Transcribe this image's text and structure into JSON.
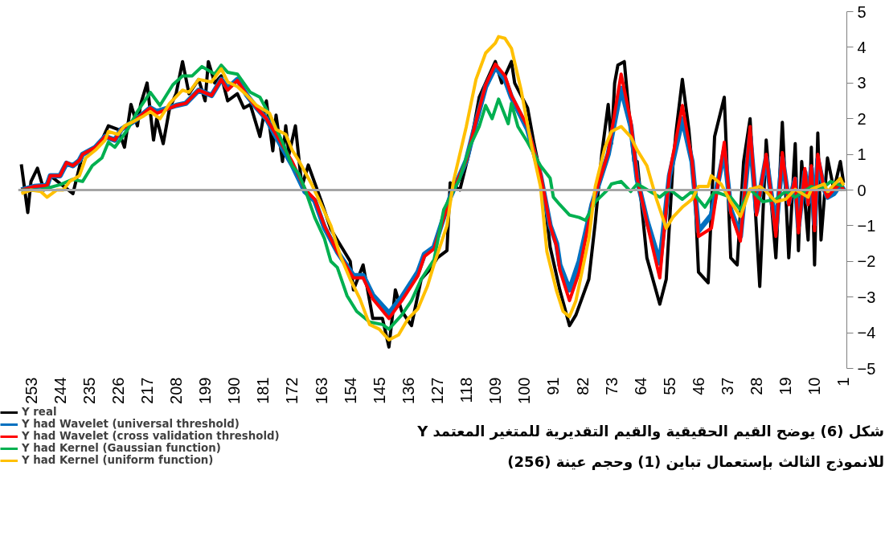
{
  "chart_data": {
    "type": "line",
    "title": "شكل (6) يوضح القيم الحقيقية والقيم التقديرية للمتغير المعتمد Y",
    "subtitle": "للانموذج الثالث بإستعمال تباين (1) وحجم عينة (256)",
    "xlim": [
      257,
      0
    ],
    "xticks": [
      253,
      244,
      235,
      226,
      217,
      208,
      199,
      190,
      181,
      172,
      163,
      154,
      145,
      136,
      127,
      118,
      109,
      100,
      91,
      82,
      73,
      64,
      55,
      46,
      37,
      28,
      19,
      10,
      1
    ],
    "ylim": [
      -5,
      5
    ],
    "yticks": [
      -5,
      -4,
      -3,
      -2,
      -1,
      0,
      1,
      2,
      3,
      4,
      5
    ],
    "grid": false,
    "legend": "bottom left",
    "ref_lines": [
      {
        "axis": "y",
        "value": 0,
        "color": "#a6a6a6"
      }
    ],
    "series": [
      {
        "name": "Y real",
        "color": "#000000",
        "x": [
          256,
          254,
          253,
          251,
          249,
          247,
          240,
          237,
          234,
          231,
          229,
          226,
          224,
          222,
          220,
          219,
          217,
          215,
          214,
          212,
          210,
          208,
          206,
          204,
          201,
          199,
          198,
          196,
          194,
          192,
          189,
          187,
          185,
          182,
          180,
          178,
          177,
          175,
          174,
          173,
          171,
          169,
          167,
          163,
          160,
          158,
          154,
          153,
          150,
          147,
          144,
          142,
          140,
          138,
          135,
          132,
          129,
          127,
          124,
          123,
          120,
          117,
          114,
          111,
          109,
          107,
          104,
          103,
          99,
          97,
          94,
          92,
          89,
          86,
          84,
          82,
          80,
          78,
          76,
          74,
          73,
          72,
          71,
          69,
          68,
          66,
          65,
          62,
          58,
          56,
          54,
          53,
          51,
          49,
          47,
          46,
          43,
          41,
          38,
          36,
          34,
          32,
          30,
          27,
          25,
          22,
          20,
          18,
          16,
          15,
          14,
          12,
          11,
          10,
          9,
          8,
          6,
          4,
          2,
          1
        ],
        "values": [
          0.72,
          -0.63,
          0.24,
          0.61,
          0.0,
          0.4,
          -0.1,
          1.0,
          1.1,
          1.4,
          1.8,
          1.7,
          1.2,
          2.4,
          1.8,
          2.4,
          3.0,
          1.4,
          2.0,
          1.3,
          2.3,
          2.7,
          3.6,
          2.7,
          3.1,
          2.5,
          3.6,
          3.0,
          3.2,
          2.5,
          2.7,
          2.3,
          2.4,
          1.5,
          2.5,
          1.1,
          2.1,
          0.8,
          1.8,
          1.0,
          1.8,
          0.1,
          0.7,
          -0.3,
          -1.1,
          -1.4,
          -2.0,
          -2.8,
          -2.1,
          -3.6,
          -3.6,
          -4.4,
          -2.8,
          -3.4,
          -3.8,
          -2.5,
          -2.2,
          -1.9,
          -1.7,
          0.2,
          0.0,
          1.1,
          2.6,
          3.2,
          3.6,
          3.0,
          3.6,
          3.0,
          2.3,
          1.3,
          0.0,
          -1.6,
          -2.8,
          -3.8,
          -3.5,
          -3.0,
          -2.5,
          -0.9,
          1.0,
          2.4,
          1.3,
          3.0,
          3.5,
          3.6,
          2.6,
          0.8,
          0.8,
          -1.9,
          -3.2,
          -2.5,
          0.6,
          1.6,
          3.1,
          1.7,
          -0.3,
          -2.3,
          -2.6,
          1.5,
          2.6,
          -1.9,
          -2.1,
          0.8,
          2.0,
          -2.7,
          1.4,
          -1.9,
          1.9,
          -1.9,
          1.3,
          -1.7,
          0.8,
          -1.4,
          1.2,
          -2.1,
          1.6,
          -1.4,
          0.9,
          0.0,
          0.8,
          0.2
        ]
      },
      {
        "name": "Y had Wavelet (universal threshold)",
        "color": "#0070c0",
        "x": [
          256,
          252,
          248,
          247,
          244,
          242,
          240,
          238,
          237,
          233,
          230,
          227,
          225,
          221,
          216,
          214,
          208,
          205,
          201,
          197,
          194,
          192,
          189,
          186,
          183,
          180,
          177,
          172,
          168,
          165,
          162,
          158,
          153,
          150,
          147,
          142,
          138,
          133,
          131,
          128,
          123,
          118,
          115,
          112,
          109,
          106,
          104,
          99,
          95,
          92,
          90,
          89,
          86,
          83,
          79,
          74,
          70,
          67,
          65,
          62,
          58,
          55,
          51,
          48,
          46,
          42,
          38,
          36,
          33,
          30,
          28,
          25,
          22,
          20,
          18,
          16,
          15,
          13,
          12,
          11,
          10,
          9,
          7,
          6,
          4,
          2,
          1
        ],
        "values": [
          0.0,
          0.1,
          0.13,
          0.4,
          0.4,
          0.75,
          0.68,
          0.83,
          1.0,
          1.2,
          1.5,
          1.4,
          1.7,
          1.93,
          2.3,
          2.2,
          2.37,
          2.43,
          2.8,
          2.65,
          3.1,
          2.85,
          3.1,
          2.65,
          2.3,
          2.0,
          1.5,
          0.7,
          -0.05,
          -0.3,
          -1.05,
          -1.73,
          -2.4,
          -2.4,
          -2.95,
          -3.45,
          -3.0,
          -2.3,
          -1.8,
          -1.6,
          -0.2,
          0.83,
          1.9,
          2.9,
          3.45,
          3.1,
          2.6,
          1.7,
          0.4,
          -1.0,
          -1.5,
          -2.1,
          -2.8,
          -2.0,
          -0.4,
          1.0,
          2.85,
          1.8,
          0.3,
          -0.85,
          -2.05,
          0.4,
          2.0,
          0.8,
          -1.15,
          -0.7,
          1.1,
          -0.55,
          -1.3,
          1.5,
          -0.6,
          0.9,
          -1.1,
          0.9,
          -0.35,
          0.3,
          -1.0,
          0.5,
          -0.35,
          0.6,
          -0.95,
          0.85,
          0.02,
          -0.2,
          -0.1,
          0.15,
          0.0
        ]
      },
      {
        "name": "Y had Wavelet (cross validation threshold)",
        "color": "#ff0000",
        "x": [
          256,
          252,
          248,
          247,
          244,
          242,
          240,
          238,
          237,
          233,
          230,
          227,
          225,
          221,
          216,
          214,
          208,
          205,
          201,
          197,
          194,
          192,
          189,
          186,
          183,
          180,
          177,
          172,
          168,
          165,
          162,
          158,
          153,
          150,
          147,
          142,
          138,
          133,
          131,
          128,
          123,
          118,
          115,
          112,
          109,
          106,
          104,
          99,
          95,
          92,
          90,
          89,
          86,
          83,
          79,
          74,
          70,
          67,
          65,
          62,
          58,
          55,
          51,
          48,
          46,
          42,
          38,
          36,
          33,
          30,
          28,
          25,
          22,
          20,
          18,
          16,
          15,
          13,
          12,
          11,
          10,
          9,
          7,
          6,
          4,
          2,
          1
        ],
        "values": [
          0.0,
          0.1,
          0.13,
          0.4,
          0.4,
          0.77,
          0.68,
          0.83,
          1.0,
          1.2,
          1.5,
          1.4,
          1.7,
          1.93,
          2.3,
          2.15,
          2.37,
          2.43,
          2.8,
          2.65,
          3.1,
          2.8,
          3.07,
          2.65,
          2.3,
          2.0,
          1.56,
          0.8,
          0.02,
          -0.26,
          -1.0,
          -1.73,
          -2.46,
          -2.46,
          -3.05,
          -3.6,
          -3.1,
          -2.4,
          -1.86,
          -1.65,
          -0.2,
          0.83,
          1.93,
          2.95,
          3.53,
          3.2,
          2.65,
          1.78,
          0.46,
          -1.0,
          -1.58,
          -2.24,
          -3.1,
          -2.3,
          -0.41,
          1.05,
          3.25,
          1.93,
          0.33,
          -0.92,
          -2.46,
          0.46,
          2.37,
          0.83,
          -1.3,
          -1.07,
          1.34,
          -0.63,
          -1.43,
          1.78,
          -0.7,
          1.0,
          -1.3,
          1.05,
          -0.41,
          0.33,
          -1.2,
          0.6,
          -0.41,
          0.68,
          -1.14,
          1.0,
          0.02,
          -0.2,
          0.02,
          0.17,
          0.0
        ]
      },
      {
        "name": "Y had Kernel (Gaussian function)",
        "color": "#00b050",
        "x": [
          256,
          250,
          244,
          240,
          237,
          234,
          231,
          229,
          227,
          223,
          220,
          216,
          213,
          209,
          206,
          203,
          200,
          196,
          194,
          192,
          189,
          185,
          182,
          178,
          175,
          172,
          170,
          168,
          165,
          162,
          160,
          158,
          155,
          152,
          148,
          144,
          142,
          138,
          135,
          132,
          128,
          125,
          120,
          117,
          114,
          112,
          110,
          108,
          105,
          104,
          102,
          99,
          95,
          92,
          91,
          89,
          86,
          83,
          81,
          78,
          74,
          73,
          70,
          67,
          65,
          61,
          58,
          55,
          51,
          48,
          44,
          41,
          36,
          33,
          30,
          26,
          22,
          19,
          16,
          11,
          8,
          5,
          2,
          1
        ],
        "values": [
          0.0,
          0.0,
          0.15,
          0.3,
          0.24,
          0.68,
          0.9,
          1.34,
          1.2,
          1.7,
          2.2,
          2.74,
          2.37,
          2.95,
          3.2,
          3.2,
          3.46,
          3.25,
          3.5,
          3.3,
          3.25,
          2.74,
          2.6,
          1.93,
          1.34,
          0.68,
          0.46,
          0.02,
          -0.77,
          -1.36,
          -2.0,
          -2.17,
          -2.96,
          -3.4,
          -3.7,
          -3.77,
          -3.9,
          -3.5,
          -3.1,
          -2.5,
          -1.95,
          -0.55,
          0.33,
          1.2,
          1.78,
          2.37,
          2.0,
          2.55,
          1.86,
          2.43,
          1.78,
          1.34,
          0.68,
          0.33,
          -0.2,
          -0.41,
          -0.7,
          -0.77,
          -0.85,
          -0.33,
          0.02,
          0.17,
          0.24,
          -0.04,
          0.17,
          -0.04,
          -0.2,
          0.02,
          -0.26,
          -0.04,
          -0.48,
          -0.04,
          -0.2,
          -0.55,
          0.02,
          -0.33,
          -0.26,
          -0.04,
          -0.2,
          0.1,
          0.02,
          0.24,
          0.13,
          0.13
        ]
      },
      {
        "name": "Y had Kernel (uniform function)",
        "color": "#ffc000",
        "x": [
          256,
          253,
          250,
          248,
          245,
          243,
          241,
          238,
          236,
          233,
          230,
          229,
          226,
          224,
          221,
          218,
          216,
          213,
          210,
          206,
          204,
          201,
          197,
          194,
          192,
          189,
          186,
          183,
          179,
          177,
          174,
          172,
          170,
          166,
          163,
          160,
          157,
          154,
          151,
          148,
          145,
          142,
          139,
          136,
          133,
          130,
          128,
          124,
          122,
          118,
          115,
          112,
          109,
          108,
          106,
          104,
          101,
          98,
          95,
          93,
          90,
          88,
          86,
          84,
          80,
          78,
          75,
          73,
          70,
          67,
          65,
          62,
          59,
          56,
          54,
          51,
          48,
          46,
          43,
          42,
          39,
          36,
          33,
          30,
          27,
          25,
          22,
          19,
          16,
          12,
          11,
          7,
          6,
          2,
          1
        ],
        "values": [
          -0.1,
          0.0,
          -0.04,
          -0.2,
          0.0,
          0.0,
          0.24,
          0.4,
          0.9,
          1.12,
          1.4,
          1.64,
          1.56,
          1.8,
          1.93,
          2.08,
          2.2,
          2.0,
          2.43,
          2.8,
          2.74,
          3.1,
          3.03,
          3.4,
          3.03,
          2.9,
          2.65,
          2.37,
          2.15,
          1.7,
          1.56,
          1.12,
          0.83,
          0.17,
          -0.41,
          -1.0,
          -1.86,
          -2.5,
          -3.05,
          -3.77,
          -3.9,
          -4.2,
          -4.06,
          -3.6,
          -3.33,
          -2.68,
          -2.08,
          -1.0,
          0.24,
          1.78,
          3.1,
          3.84,
          4.12,
          4.3,
          4.25,
          3.97,
          2.8,
          1.34,
          0.1,
          -1.73,
          -2.83,
          -3.4,
          -3.55,
          -3.1,
          -1.36,
          0.1,
          1.2,
          1.64,
          1.78,
          1.49,
          1.12,
          0.68,
          -0.26,
          -1.07,
          -0.77,
          -0.48,
          -0.26,
          0.1,
          0.1,
          0.4,
          0.17,
          -0.33,
          -0.74,
          0.02,
          0.1,
          -0.04,
          -0.33,
          -0.26,
          0.02,
          -0.2,
          0.02,
          0.17,
          -0.04,
          0.33,
          0.13
        ]
      }
    ]
  }
}
